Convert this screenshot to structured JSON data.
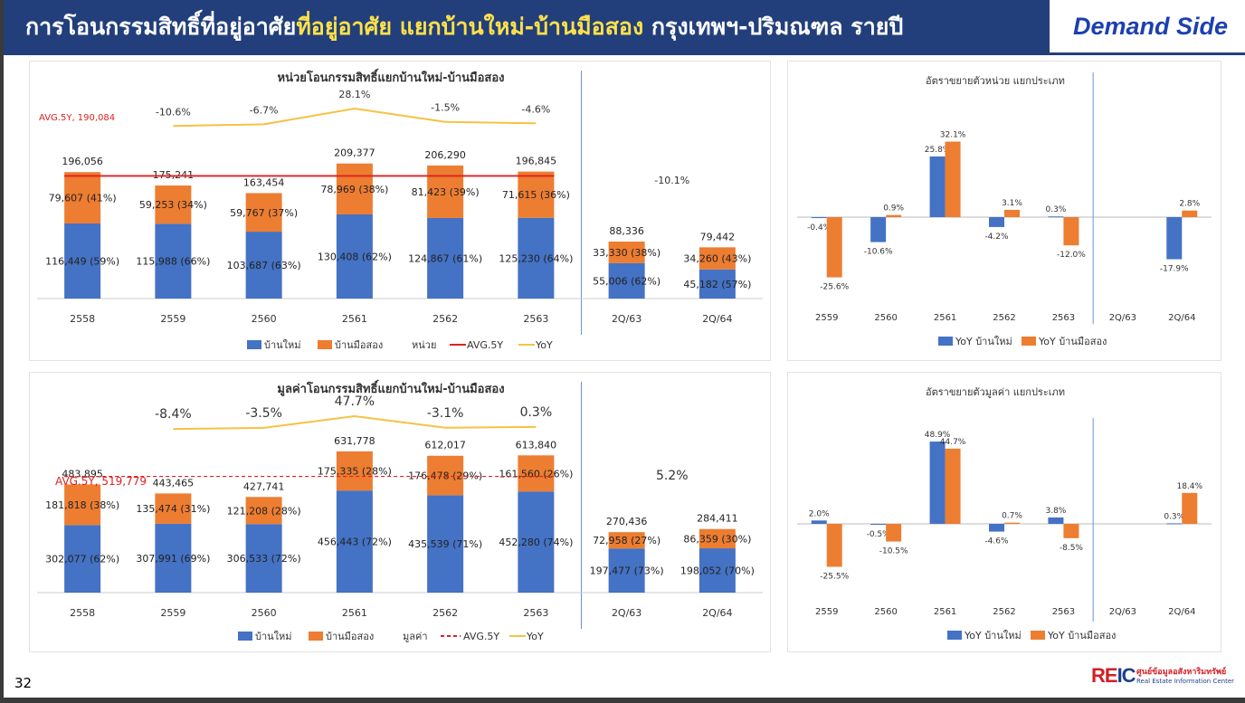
{
  "header": {
    "title_part1": "การโอนกรรมสิทธิ์ที่อยู่อาศัย",
    "title_highlight": "ที่อยู่อาศัย แยกบ้านใหม่-บ้านมือสอง",
    "title_part2": " กรุงเทพฯ-ปริมณฑล รายปี",
    "side_label": "Demand Side"
  },
  "page_number": "32",
  "logo": {
    "mark": "REIC",
    "th": "ศูนย์ข้อมูลอสังหาริมทรัพย์",
    "en": "Real Estate Information Center"
  },
  "colors": {
    "new": "#4472c4",
    "used": "#ed7d31",
    "avg": "#e02020",
    "yoy": "#f5c242"
  },
  "chart_data": [
    {
      "type": "bar",
      "stacked": true,
      "title": "หน่วยโอนกรรมสิทธิ์แยกบ้านใหม่-บ้านมือสอง",
      "categories": [
        "2558",
        "2559",
        "2560",
        "2561",
        "2562",
        "2563",
        "2Q/63",
        "2Q/64"
      ],
      "series": [
        {
          "name": "บ้านใหม่",
          "values": [
            116449,
            115988,
            103687,
            130408,
            124867,
            125230,
            55006,
            45182
          ],
          "labels": [
            "116,449 (59%)",
            "115,988 (66%)",
            "103,687 (63%)",
            "130,408 (62%)",
            "124,867 (61%)",
            "125,230 (64%)",
            "55,006 (62%)",
            "45,182 (57%)"
          ]
        },
        {
          "name": "บ้านมือสอง",
          "values": [
            79607,
            59253,
            59767,
            78969,
            81423,
            71615,
            33330,
            34260
          ],
          "labels": [
            "79,607 (41%)",
            "59,253 (34%)",
            "59,767 (37%)",
            "78,969 (38%)",
            "81,423 (39%)",
            "71,615 (36%)",
            "33,330 (38%)",
            "34,260 (43%)"
          ]
        }
      ],
      "totals": [
        "196,056",
        "175,241",
        "163,454",
        "209,377",
        "206,290",
        "196,845",
        "88,336",
        "79,442"
      ],
      "yoy": [
        null,
        -10.6,
        -6.7,
        28.1,
        -1.5,
        -4.6
      ],
      "yoy_labels": [
        "-10.6%",
        "-6.7%",
        "28.1%",
        "-1.5%",
        "-4.6%"
      ],
      "half_year_yoy_label": "-10.1%",
      "avg_value": 190084,
      "avg_label": "AVG.5Y, 190,084",
      "ylim": [
        0,
        230000
      ],
      "legend": {
        "new": "บ้านใหม่",
        "used": "บ้านมือสอง",
        "unit": "หน่วย",
        "avg": "AVG.5Y",
        "yoy": "YoY"
      }
    },
    {
      "type": "bar",
      "title": "อัตราขยายตัวหน่วย แยกประเภท",
      "categories": [
        "2559",
        "2560",
        "2561",
        "2562",
        "2563",
        "2Q/63",
        "2Q/64"
      ],
      "series": [
        {
          "name": "YoY บ้านใหม่",
          "values": [
            -0.4,
            -10.6,
            25.8,
            -4.2,
            0.3,
            null,
            -17.9
          ],
          "labels": [
            "-0.4%",
            "-10.6%",
            "25.8%",
            "-4.2%",
            "0.3%",
            "",
            "-17.9%"
          ]
        },
        {
          "name": "YoY บ้านมือสอง",
          "values": [
            -25.6,
            0.9,
            32.1,
            3.1,
            -12.0,
            null,
            2.8
          ],
          "labels": [
            "-25.6%",
            "0.9%",
            "32.1%",
            "3.1%",
            "-12.0%",
            "",
            "2.8%"
          ]
        }
      ],
      "ylim": [
        -30,
        36
      ]
    },
    {
      "type": "bar",
      "stacked": true,
      "title": "มูลค่าโอนกรรมสิทธิ์แยกบ้านใหม่-บ้านมือสอง",
      "categories": [
        "2558",
        "2559",
        "2560",
        "2561",
        "2562",
        "2563",
        "2Q/63",
        "2Q/64"
      ],
      "series": [
        {
          "name": "บ้านใหม่",
          "values": [
            302077,
            307991,
            306533,
            456443,
            435539,
            452280,
            197477,
            198052
          ],
          "labels": [
            "302,077 (62%)",
            "307,991 (69%)",
            "306,533 (72%)",
            "456,443 (72%)",
            "435,539 (71%)",
            "452,280 (74%)",
            "197,477 (73%)",
            "198,052 (70%)"
          ]
        },
        {
          "name": "บ้านมือสอง",
          "values": [
            181818,
            135474,
            121208,
            175335,
            176478,
            161560,
            72958,
            86359
          ],
          "labels": [
            "181,818 (38%)",
            "135,474 (31%)",
            "121,208 (28%)",
            "175,335 (28%)",
            "176,478 (29%)",
            "161,560 (26%)",
            "72,958 (27%)",
            "86,359 (30%)"
          ]
        }
      ],
      "totals": [
        "483,895",
        "443,465",
        "427,741",
        "631,778",
        "612,017",
        "613,840",
        "270,436",
        "284,411"
      ],
      "yoy": [
        null,
        -8.4,
        -3.5,
        47.7,
        -3.1,
        0.3
      ],
      "yoy_labels": [
        "-8.4%",
        "-3.5%",
        "47.7%",
        "-3.1%",
        "0.3%"
      ],
      "half_year_yoy_label": "5.2%",
      "avg_value": 519779,
      "avg_label": "AVG.5Y, 519,779",
      "ylim": [
        0,
        700000
      ],
      "legend": {
        "new": "บ้านใหม่",
        "used": "บ้านมือสอง",
        "unit": "มูลค่า",
        "avg": "AVG.5Y",
        "yoy": "YoY"
      }
    },
    {
      "type": "bar",
      "title": "อัตราขยายตัวมูลค่า แยกประเภท",
      "categories": [
        "2559",
        "2560",
        "2561",
        "2562",
        "2563",
        "2Q/63",
        "2Q/64"
      ],
      "series": [
        {
          "name": "YoY บ้านใหม่",
          "values": [
            2.0,
            -0.5,
            48.9,
            -4.6,
            3.8,
            null,
            0.3
          ],
          "labels": [
            "2.0%",
            "-0.5%",
            "48.9%",
            "-4.6%",
            "3.8%",
            "",
            "0.3%"
          ]
        },
        {
          "name": "YoY บ้านมือสอง",
          "values": [
            -25.5,
            -10.5,
            44.7,
            0.7,
            -8.5,
            null,
            18.4
          ],
          "labels": [
            "-25.5%",
            "-10.5%",
            "44.7%",
            "0.7%",
            "-8.5%",
            "",
            "18.4%"
          ]
        }
      ],
      "ylim": [
        -30,
        55
      ]
    }
  ]
}
